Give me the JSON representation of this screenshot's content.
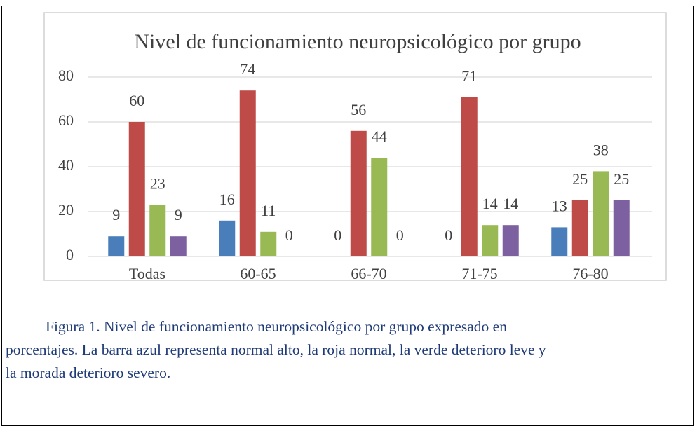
{
  "chart_data": {
    "type": "bar",
    "title": "Nivel de funcionamiento neuropsicológico por grupo",
    "categories": [
      "Todas",
      "60-65",
      "66-70",
      "71-75",
      "76-80"
    ],
    "series": [
      {
        "color": "#4a7ebb",
        "values": [
          9,
          16,
          0,
          0,
          13
        ]
      },
      {
        "color": "#be4b48",
        "values": [
          60,
          74,
          56,
          71,
          25
        ]
      },
      {
        "color": "#98b954",
        "values": [
          23,
          11,
          44,
          14,
          38
        ]
      },
      {
        "color": "#7d60a0",
        "values": [
          9,
          0,
          0,
          14,
          25
        ]
      }
    ],
    "ylim": [
      0,
      80
    ],
    "yticks": [
      0,
      20,
      40,
      60,
      80
    ],
    "grid": true
  },
  "caption": [
    "Figura 1.  Nivel de funcionamiento neuropsicológico por grupo expresado en",
    "porcentajes. La barra azul representa normal alto, la roja normal, la verde deterioro leve y",
    "la morada deterioro severo."
  ]
}
